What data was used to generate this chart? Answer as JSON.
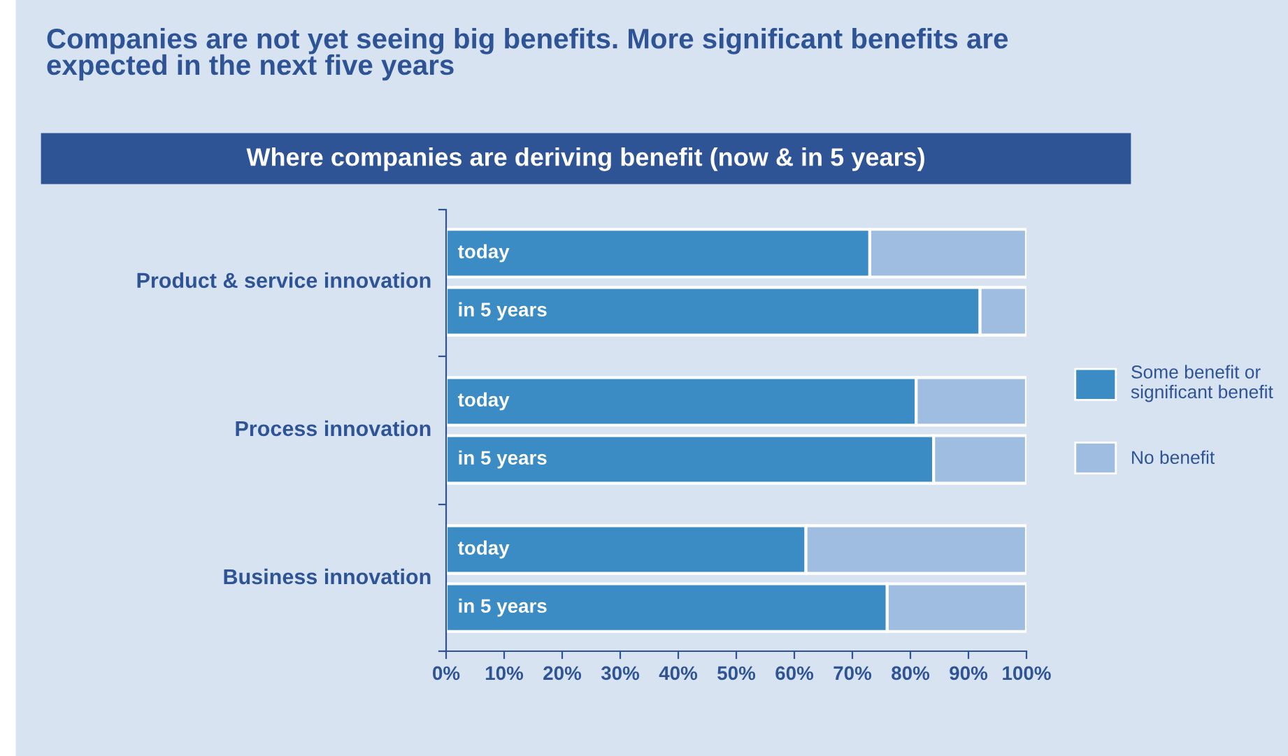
{
  "chart_data": {
    "type": "bar",
    "orientation": "horizontal",
    "stacked": true,
    "title": "Companies are not yet seeing big benefits. More significant benefits are\nexpected in the next five years",
    "subtitle": "Where companies are deriving benefit (now & in 5 years)",
    "categories": [
      "today",
      "in 5 years",
      "today",
      "in 5 years",
      "today",
      "in 5 years"
    ],
    "series": [
      {
        "name": "Some benefit or\nsignificant benefit",
        "color": "#3b8bc5",
        "values": [
          73,
          92,
          81,
          84,
          62,
          76
        ]
      },
      {
        "name": "No benefit",
        "color": "#9fbde0",
        "values": [
          27,
          8,
          19,
          16,
          38,
          24
        ]
      }
    ],
    "annotations": [
      "Product & service innovation",
      "Process innovation",
      "Business innovation"
    ],
    "xlim": [
      0,
      100
    ],
    "xticks": [
      {
        "value": 0,
        "label": "0%"
      },
      {
        "value": 10,
        "label": "10%"
      },
      {
        "value": 20,
        "label": "20%"
      },
      {
        "value": 30,
        "label": "30%"
      },
      {
        "value": 40,
        "label": "40%"
      },
      {
        "value": 50,
        "label": "50%"
      },
      {
        "value": 60,
        "label": "60%"
      },
      {
        "value": 70,
        "label": "70%"
      },
      {
        "value": 80,
        "label": "80%"
      },
      {
        "value": 90,
        "label": "90%"
      },
      {
        "value": 100,
        "label": "100%"
      }
    ],
    "grid": false,
    "legend": "right"
  }
}
